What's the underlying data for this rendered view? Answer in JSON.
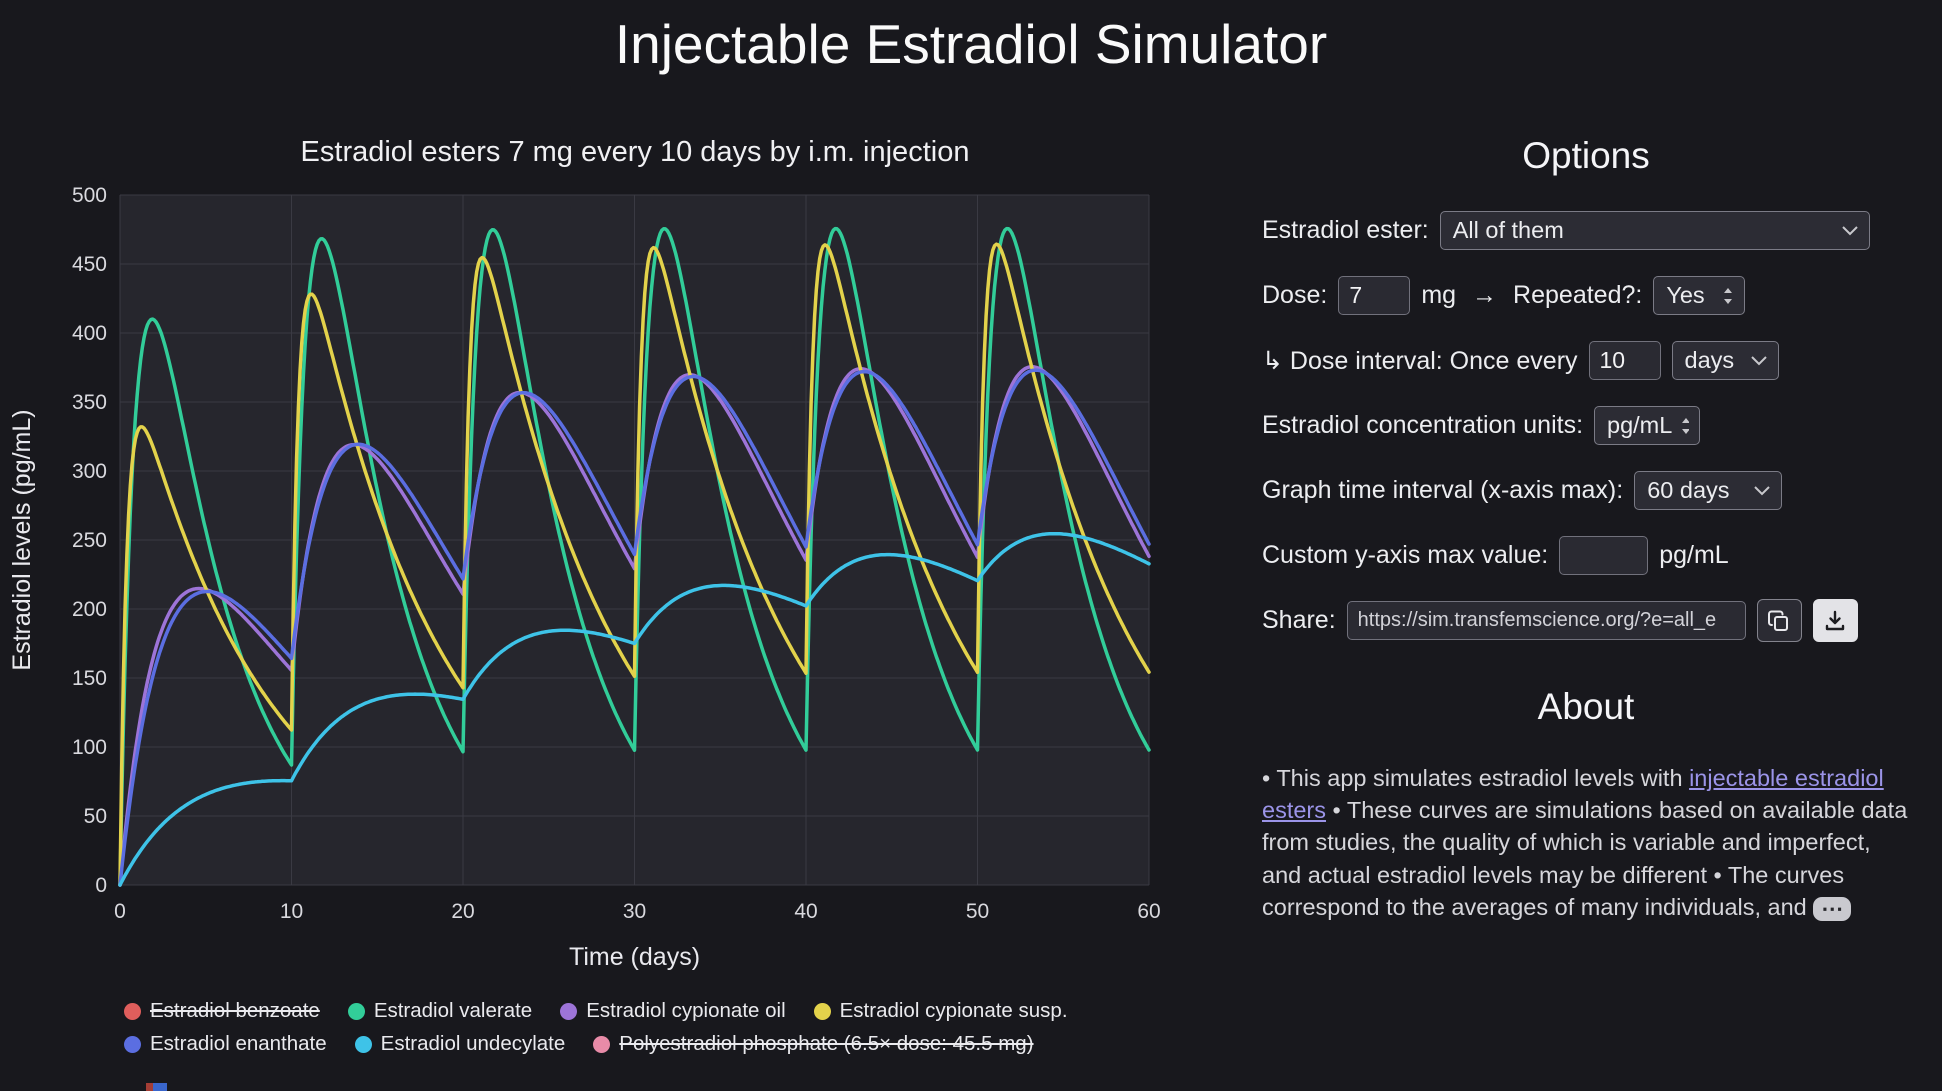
{
  "page": {
    "title": "Injectable Estradiol Simulator"
  },
  "colors": {
    "background": "#18181d",
    "plot_background": "#26262d",
    "grid": "#3a3a43",
    "text": "#ececf0",
    "link": "#9b94e8"
  },
  "chart_data": {
    "type": "line",
    "title": "Estradiol esters 7 mg every 10 days by i.m. injection",
    "xlabel": "Time (days)",
    "ylabel": "Estradiol levels (pg/mL)",
    "xlim": [
      0,
      60
    ],
    "ylim": [
      0,
      500
    ],
    "x_ticks": [
      0,
      10,
      20,
      30,
      40,
      50,
      60
    ],
    "y_ticks": [
      0,
      50,
      100,
      150,
      200,
      250,
      300,
      350,
      400,
      450,
      500
    ],
    "grid": true,
    "legend_position": "bottom",
    "dose_mg": 7,
    "dose_times_days": [
      0,
      10,
      20,
      30,
      40,
      50
    ],
    "model": "C(t) = scale * sum over doses td of (exp(-ke*(t-td)) - exp(-ka*(t-td)))",
    "series": [
      {
        "name": "Estradiol benzoate",
        "color": "#df5e5c",
        "enabled": false
      },
      {
        "name": "Estradiol valerate",
        "color": "#32cd99",
        "enabled": true,
        "ka": 1.05,
        "ke": 0.22,
        "scale": 785,
        "approx_first_peak": 410,
        "approx_steady_peak": 467,
        "approx_steady_trough": 95
      },
      {
        "name": "Estradiol cypionate oil",
        "color": "#9d74d8",
        "enabled": true,
        "ka": 0.38,
        "ke": 0.11,
        "scale": 501,
        "approx_first_peak": 215,
        "approx_steady_peak": 360,
        "approx_steady_trough": 240
      },
      {
        "name": "Estradiol cypionate susp.",
        "color": "#e3d24b",
        "enabled": true,
        "ka": 2.5,
        "ke": 0.13,
        "scale": 412,
        "approx_first_peak": 332,
        "approx_steady_peak": 462,
        "approx_steady_trough": 154
      },
      {
        "name": "Estradiol enanthate",
        "color": "#5b6ee1",
        "enabled": true,
        "ka": 0.3,
        "ke": 0.12,
        "scale": 653,
        "approx_first_peak": 213,
        "approx_steady_peak": 355,
        "approx_steady_trough": 246
      },
      {
        "name": "Estradiol undecylate",
        "color": "#3ec3e8",
        "enabled": true,
        "ka": 0.22,
        "ke": 0.04,
        "scale": 135,
        "approx_first_peak": 76,
        "approx_steady_peak": 252,
        "approx_steady_trough": 215
      },
      {
        "name": "Polyestradiol phosphate (6.5× dose: 45.5 mg)",
        "color": "#e88ba8",
        "enabled": false
      }
    ]
  },
  "options": {
    "heading": "Options",
    "ester_label": "Estradiol ester:",
    "ester_value": "All of them",
    "dose_label": "Dose:",
    "dose_value": "7",
    "dose_unit": "mg",
    "arrow": "→",
    "repeated_label": "Repeated?:",
    "repeated_value": "Yes",
    "interval_label": "↳ Dose interval: Once every",
    "interval_value": "10",
    "interval_unit_value": "days",
    "units_label": "Estradiol concentration units:",
    "units_value": "pg/mL",
    "xaxis_label": "Graph time interval (x-axis max):",
    "xaxis_value": "60 days",
    "ymax_label": "Custom y-axis max value:",
    "ymax_value": "",
    "ymax_unit": "pg/mL",
    "share_label": "Share:",
    "share_url": "https://sim.transfemscience.org/?e=all_e"
  },
  "about": {
    "heading": "About",
    "text_before_link": "• This app simulates estradiol levels with ",
    "link_text": "injectable estradiol esters",
    "text_after_link": " • These curves are simulations based on available data from studies, the quality of which is variable and imperfect, and actual estradiol levels may be different • The curves correspond to the averages of many individuals, and ",
    "more_button": "⋯"
  },
  "icons": {
    "copy": "copy-icon",
    "download": "download-icon",
    "chevron": "chevron-down-icon",
    "stepper": "up-down-arrows-icon"
  }
}
